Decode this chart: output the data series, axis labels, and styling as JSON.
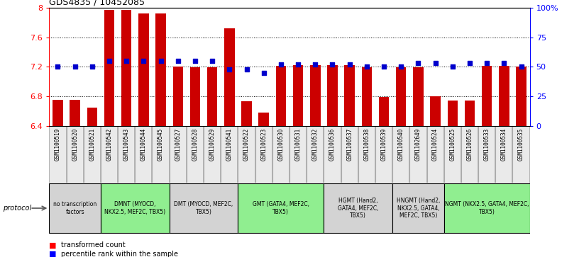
{
  "title": "GDS4835 / 10452085",
  "samples": [
    "GSM1100519",
    "GSM1100520",
    "GSM1100521",
    "GSM1100542",
    "GSM1100543",
    "GSM1100544",
    "GSM1100545",
    "GSM1100527",
    "GSM1100528",
    "GSM1100529",
    "GSM1100541",
    "GSM1100522",
    "GSM1100523",
    "GSM1100530",
    "GSM1100531",
    "GSM1100532",
    "GSM1100536",
    "GSM1100537",
    "GSM1100538",
    "GSM1100539",
    "GSM1100540",
    "GSM1102649",
    "GSM1100524",
    "GSM1100525",
    "GSM1100526",
    "GSM1100533",
    "GSM1100534",
    "GSM1100535"
  ],
  "transformed_count": [
    6.75,
    6.75,
    6.65,
    7.97,
    7.97,
    7.92,
    7.92,
    7.2,
    7.19,
    7.19,
    7.72,
    6.73,
    6.58,
    7.21,
    7.22,
    7.22,
    7.22,
    7.22,
    7.19,
    6.79,
    7.19,
    7.19,
    6.8,
    6.74,
    6.74,
    7.21,
    7.21,
    7.2
  ],
  "percentile_rank": [
    50,
    50,
    50,
    55,
    55,
    55,
    55,
    55,
    55,
    55,
    48,
    48,
    45,
    52,
    52,
    52,
    52,
    52,
    50,
    50,
    50,
    53,
    53,
    50,
    53,
    53,
    53,
    50
  ],
  "groups": [
    {
      "label": "no transcription\nfactors",
      "start": 0,
      "end": 3,
      "color": "#d3d3d3"
    },
    {
      "label": "DMNT (MYOCD,\nNKX2.5, MEF2C, TBX5)",
      "start": 3,
      "end": 7,
      "color": "#90EE90"
    },
    {
      "label": "DMT (MYOCD, MEF2C,\nTBX5)",
      "start": 7,
      "end": 11,
      "color": "#d3d3d3"
    },
    {
      "label": "GMT (GATA4, MEF2C,\nTBX5)",
      "start": 11,
      "end": 16,
      "color": "#90EE90"
    },
    {
      "label": "HGMT (Hand2,\nGATA4, MEF2C,\nTBX5)",
      "start": 16,
      "end": 20,
      "color": "#d3d3d3"
    },
    {
      "label": "HNGMT (Hand2,\nNKX2.5, GATA4,\nMEF2C, TBX5)",
      "start": 20,
      "end": 23,
      "color": "#d3d3d3"
    },
    {
      "label": "NGMT (NKX2.5, GATA4, MEF2C,\nTBX5)",
      "start": 23,
      "end": 28,
      "color": "#90EE90"
    }
  ],
  "ylim": [
    6.4,
    8.0
  ],
  "yticks": [
    6.4,
    6.8,
    7.2,
    7.6,
    8.0
  ],
  "ytick_labels": [
    "6.4",
    "6.8",
    "7.2",
    "7.6",
    "8"
  ],
  "right_yticks": [
    0,
    25,
    50,
    75,
    100
  ],
  "right_ytick_labels": [
    "0",
    "25",
    "50",
    "75",
    "100%"
  ],
  "bar_color": "#CC0000",
  "dot_color": "#0000CC"
}
